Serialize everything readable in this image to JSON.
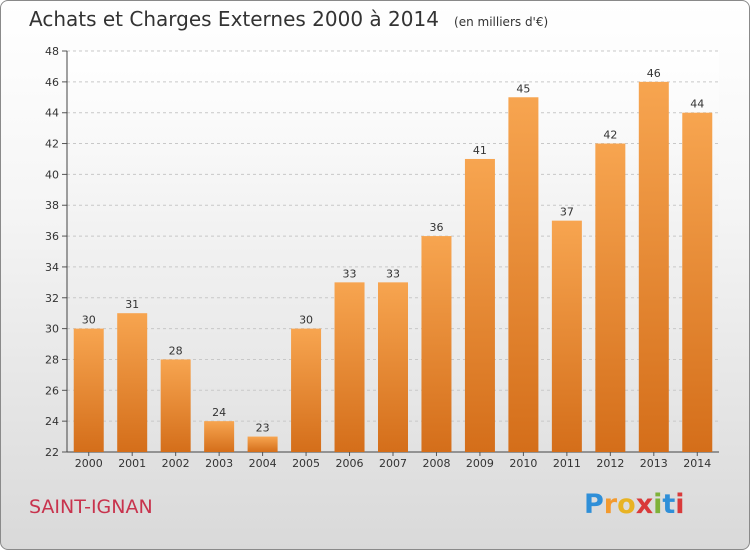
{
  "chart_data": {
    "type": "bar",
    "title": "Achats et Charges Externes 2000 à 2014",
    "subtitle": "(en milliers d'€)",
    "categories": [
      "2000",
      "2001",
      "2002",
      "2003",
      "2004",
      "2005",
      "2006",
      "2007",
      "2008",
      "2009",
      "2010",
      "2011",
      "2012",
      "2013",
      "2014"
    ],
    "values": [
      30,
      31,
      28,
      24,
      23,
      30,
      33,
      33,
      36,
      41,
      45,
      37,
      42,
      46,
      44
    ],
    "ylim": [
      22,
      48
    ],
    "yticks": [
      22,
      24,
      26,
      28,
      30,
      32,
      34,
      36,
      38,
      40,
      42,
      44,
      46,
      48
    ],
    "grid": true,
    "bar_color": "#f0933c"
  },
  "footer": {
    "commune": "SAINT-IGNAN",
    "logo_letters": [
      {
        "ch": "P",
        "color": "#2f8fd8"
      },
      {
        "ch": "r",
        "color": "#f39a2e"
      },
      {
        "ch": "o",
        "color": "#e8b323"
      },
      {
        "ch": "x",
        "color": "#d93a3a"
      },
      {
        "ch": "i",
        "color": "#7fb23a"
      },
      {
        "ch": "t",
        "color": "#2f8fd8"
      },
      {
        "ch": "i",
        "color": "#d93a3a"
      }
    ]
  }
}
